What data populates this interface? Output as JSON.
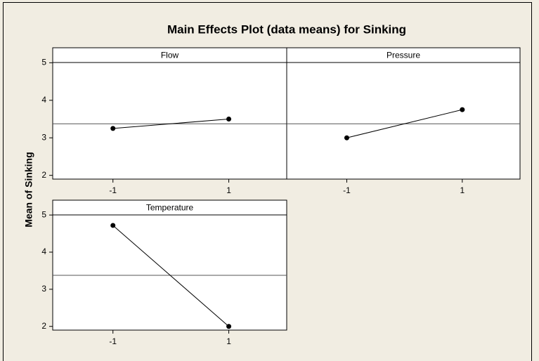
{
  "title": "Main Effects Plot (data means) for Sinking",
  "y_label": "Mean of Sinking",
  "chart_data": [
    {
      "type": "line",
      "title": "Flow",
      "x": [
        -1,
        1
      ],
      "values": [
        3.25,
        3.5
      ],
      "color": "#000000",
      "xlim": [
        -2.04,
        2.0
      ],
      "xticks": [
        -1,
        1
      ],
      "ylim": [
        1.9,
        5.4
      ],
      "yticks": [
        2,
        3,
        4,
        5
      ],
      "reference_line": 3.375
    },
    {
      "type": "line",
      "title": "Pressure",
      "x": [
        -1,
        1
      ],
      "values": [
        3.0,
        3.75
      ],
      "color": "#000000",
      "xlim": [
        -2.04,
        2.0
      ],
      "xticks": [
        -1,
        1
      ],
      "ylim": [
        1.9,
        5.4
      ],
      "reference_line": 3.375
    },
    {
      "type": "line",
      "title": "Temperature",
      "x": [
        -1,
        1
      ],
      "values": [
        4.72,
        2.0
      ],
      "color": "#000000",
      "xlim": [
        -2.04,
        2.0
      ],
      "xticks": [
        -1,
        1
      ],
      "ylim": [
        1.9,
        5.4
      ],
      "yticks": [
        2,
        3,
        4,
        5
      ],
      "reference_line": 3.375
    }
  ]
}
